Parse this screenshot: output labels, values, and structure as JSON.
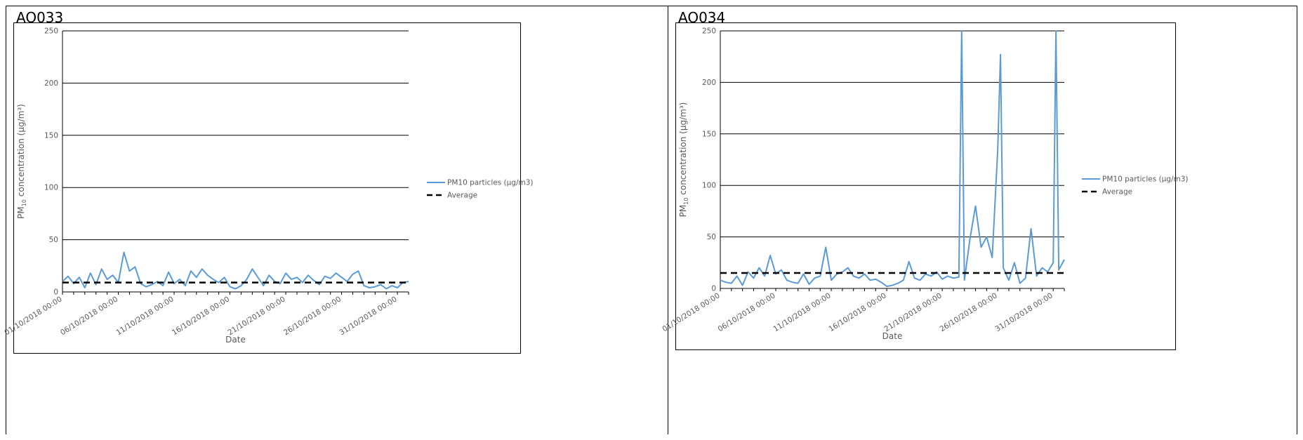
{
  "panels": [
    {
      "title": "AQ033",
      "chart_data": {
        "type": "line",
        "xlabel": "Date",
        "ylabel": "PM",
        "ylabel_sub": "10",
        "ylabel_rest": " concentration (µg/m³)",
        "ylim": [
          0,
          250
        ],
        "yticks": [
          0,
          50,
          100,
          150,
          200,
          250
        ],
        "xlim": [
          "2018-10-01",
          "2018-11-01"
        ],
        "xticks": [
          {
            "date": "2018-10-01",
            "label": "01/10/2018 00:00"
          },
          {
            "date": "2018-10-06",
            "label": "06/10/2018 00:00"
          },
          {
            "date": "2018-10-11",
            "label": "11/10/2018 00:00"
          },
          {
            "date": "2018-10-16",
            "label": "16/10/2018 00:00"
          },
          {
            "date": "2018-10-21",
            "label": "21/10/2018 00:00"
          },
          {
            "date": "2018-10-26",
            "label": "26/10/2018 00:00"
          },
          {
            "date": "2018-10-31",
            "label": "31/10/2018 00:00"
          }
        ],
        "grid": true,
        "legend_position": "right",
        "series": [
          {
            "name": "PM10 particles (µg/m3)",
            "color": "#5b9bd5",
            "style": "solid",
            "x": [
              "2018-10-01",
              "2018-10-01 12:00",
              "2018-10-02",
              "2018-10-02 12:00",
              "2018-10-03",
              "2018-10-03 12:00",
              "2018-10-04",
              "2018-10-04 12:00",
              "2018-10-05",
              "2018-10-05 12:00",
              "2018-10-06",
              "2018-10-06 12:00",
              "2018-10-07",
              "2018-10-07 12:00",
              "2018-10-08",
              "2018-10-08 12:00",
              "2018-10-09",
              "2018-10-09 12:00",
              "2018-10-10",
              "2018-10-10 12:00",
              "2018-10-11",
              "2018-10-11 12:00",
              "2018-10-12",
              "2018-10-12 12:00",
              "2018-10-13",
              "2018-10-13 12:00",
              "2018-10-14",
              "2018-10-14 12:00",
              "2018-10-15",
              "2018-10-15 12:00",
              "2018-10-16",
              "2018-10-16 12:00",
              "2018-10-17",
              "2018-10-17 12:00",
              "2018-10-18",
              "2018-10-18 12:00",
              "2018-10-19",
              "2018-10-19 12:00",
              "2018-10-20",
              "2018-10-20 12:00",
              "2018-10-21",
              "2018-10-21 12:00",
              "2018-10-22",
              "2018-10-22 12:00",
              "2018-10-23",
              "2018-10-23 12:00",
              "2018-10-24",
              "2018-10-24 12:00",
              "2018-10-25",
              "2018-10-25 12:00",
              "2018-10-26",
              "2018-10-26 12:00",
              "2018-10-27",
              "2018-10-27 12:00",
              "2018-10-28",
              "2018-10-28 12:00",
              "2018-10-29",
              "2018-10-29 12:00",
              "2018-10-30",
              "2018-10-30 12:00",
              "2018-10-31",
              "2018-10-31 12:00",
              "2018-11-01"
            ],
            "y": [
              10,
              15,
              8,
              14,
              4,
              18,
              7,
              22,
              12,
              16,
              9,
              38,
              20,
              24,
              8,
              5,
              7,
              10,
              6,
              19,
              8,
              12,
              6,
              20,
              14,
              22,
              16,
              12,
              9,
              14,
              5,
              3,
              6,
              12,
              22,
              14,
              6,
              16,
              10,
              8,
              18,
              12,
              14,
              9,
              16,
              11,
              7,
              15,
              13,
              18,
              14,
              10,
              17,
              20,
              6,
              4,
              5,
              7,
              3,
              6,
              4,
              9,
              10
            ]
          },
          {
            "name": "Average",
            "color": "#000000",
            "style": "dashed",
            "x": [
              "2018-10-01",
              "2018-11-01"
            ],
            "y": [
              9,
              9
            ]
          }
        ]
      }
    },
    {
      "title": "AQ034",
      "chart_data": {
        "type": "line",
        "xlabel": "Date",
        "ylabel": "PM",
        "ylabel_sub": "10",
        "ylabel_rest": " concentration (µg/m³)",
        "ylim": [
          0,
          250
        ],
        "yticks": [
          0,
          50,
          100,
          150,
          200,
          250
        ],
        "xlim": [
          "2018-10-01",
          "2018-11-01"
        ],
        "xticks": [
          {
            "date": "2018-10-01",
            "label": "01/10/2018 00:00"
          },
          {
            "date": "2018-10-06",
            "label": "06/10/2018 00:00"
          },
          {
            "date": "2018-10-11",
            "label": "11/10/2018 00:00"
          },
          {
            "date": "2018-10-16",
            "label": "16/10/2018 00:00"
          },
          {
            "date": "2018-10-21",
            "label": "21/10/2018 00:00"
          },
          {
            "date": "2018-10-26",
            "label": "26/10/2018 00:00"
          },
          {
            "date": "2018-10-31",
            "label": "31/10/2018 00:00"
          }
        ],
        "grid": true,
        "legend_position": "right",
        "series": [
          {
            "name": "PM10 particles (µg/m3)",
            "color": "#5b9bd5",
            "style": "solid",
            "x": [
              "2018-10-01",
              "2018-10-01 12:00",
              "2018-10-02",
              "2018-10-02 12:00",
              "2018-10-03",
              "2018-10-03 12:00",
              "2018-10-04",
              "2018-10-04 12:00",
              "2018-10-05",
              "2018-10-05 12:00",
              "2018-10-06",
              "2018-10-06 12:00",
              "2018-10-07",
              "2018-10-07 12:00",
              "2018-10-08",
              "2018-10-08 12:00",
              "2018-10-09",
              "2018-10-09 12:00",
              "2018-10-10",
              "2018-10-10 12:00",
              "2018-10-11",
              "2018-10-11 12:00",
              "2018-10-12",
              "2018-10-12 12:00",
              "2018-10-13",
              "2018-10-13 12:00",
              "2018-10-14",
              "2018-10-14 12:00",
              "2018-10-15",
              "2018-10-15 12:00",
              "2018-10-16",
              "2018-10-16 12:00",
              "2018-10-17",
              "2018-10-17 12:00",
              "2018-10-18",
              "2018-10-18 12:00",
              "2018-10-19",
              "2018-10-19 12:00",
              "2018-10-20",
              "2018-10-20 12:00",
              "2018-10-21",
              "2018-10-21 12:00",
              "2018-10-22",
              "2018-10-22 12:00",
              "2018-10-22 18:00",
              "2018-10-23",
              "2018-10-23 12:00",
              "2018-10-24",
              "2018-10-24 12:00",
              "2018-10-25",
              "2018-10-25 12:00",
              "2018-10-26",
              "2018-10-26 06:00",
              "2018-10-26 12:00",
              "2018-10-27",
              "2018-10-27 12:00",
              "2018-10-28",
              "2018-10-28 12:00",
              "2018-10-29",
              "2018-10-29 12:00",
              "2018-10-30",
              "2018-10-30 12:00",
              "2018-10-31",
              "2018-10-31 06:00",
              "2018-10-31 12:00",
              "2018-11-01"
            ],
            "y": [
              8,
              6,
              5,
              12,
              3,
              16,
              10,
              20,
              12,
              32,
              14,
              18,
              8,
              6,
              5,
              14,
              4,
              10,
              12,
              40,
              8,
              14,
              16,
              20,
              12,
              10,
              14,
              8,
              9,
              6,
              2,
              3,
              5,
              8,
              26,
              10,
              8,
              14,
              12,
              16,
              9,
              12,
              10,
              11,
              250,
              8,
              48,
              80,
              40,
              50,
              30,
              135,
              227,
              20,
              8,
              25,
              5,
              10,
              58,
              12,
              20,
              16,
              25,
              250,
              18,
              28
            ]
          },
          {
            "name": "Average",
            "color": "#000000",
            "style": "dashed",
            "x": [
              "2018-10-01",
              "2018-11-01"
            ],
            "y": [
              15,
              15
            ]
          }
        ]
      }
    }
  ]
}
